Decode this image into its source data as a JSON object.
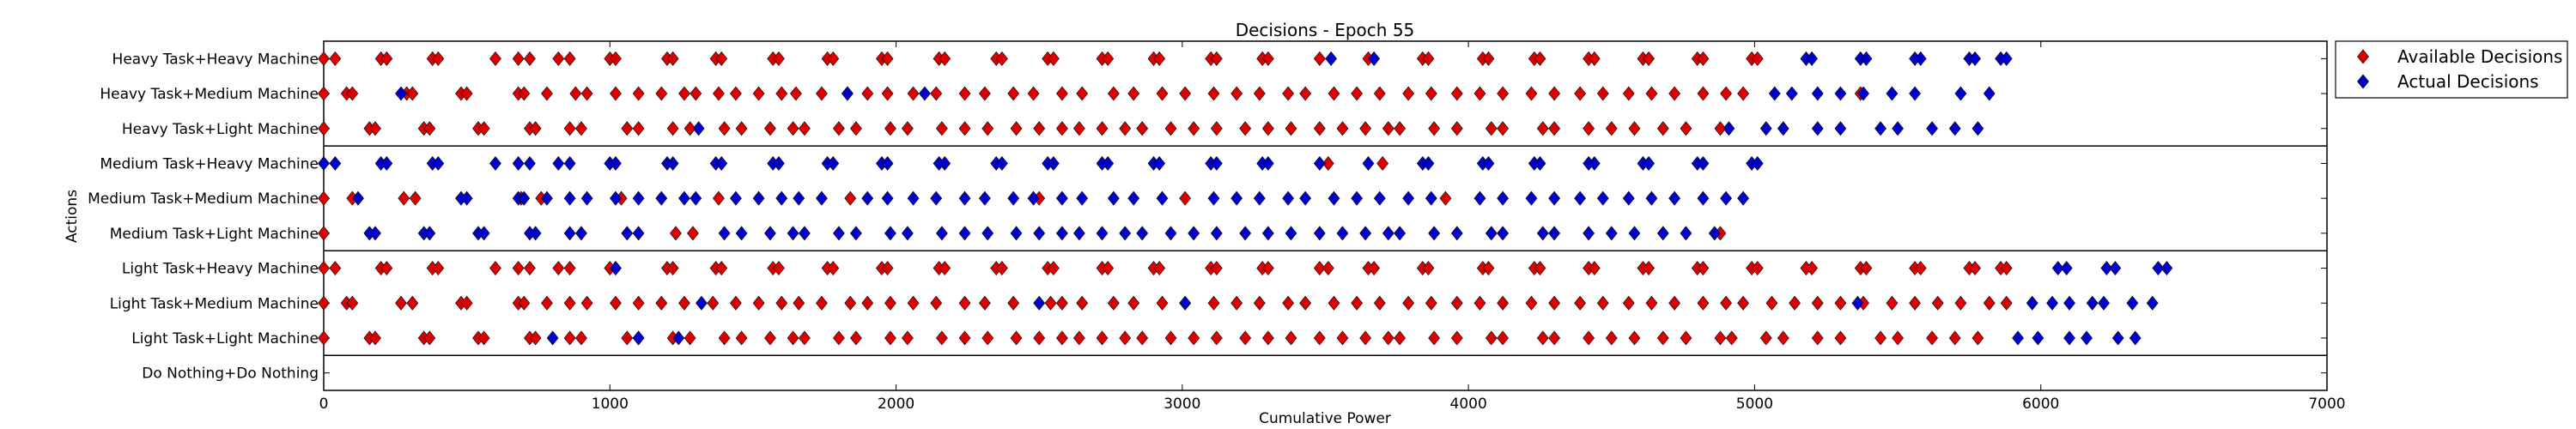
{
  "chart_data": {
    "type": "scatter",
    "title": "Decisions - Epoch 55",
    "xlabel": "Cumulative Power",
    "ylabel": "Actions",
    "xlim": [
      0,
      7000
    ],
    "x_ticks": [
      "0",
      "1000",
      "2000",
      "3000",
      "4000",
      "5000",
      "6000",
      "7000"
    ],
    "categories": [
      "Heavy Task+Heavy Machine",
      "Heavy Task+Medium Machine",
      "Heavy Task+Light Machine",
      "Medium Task+Heavy Machine",
      "Medium Task+Medium Machine",
      "Medium Task+Light Machine",
      "Light Task+Heavy Machine",
      "Light Task+Medium Machine",
      "Light Task+Light Machine",
      "Do Nothing+Do Nothing"
    ],
    "group_separators_after": [
      2,
      5,
      8
    ],
    "grid": false,
    "legend_position": "outside-top-right",
    "series": [
      {
        "name": "Available Decisions",
        "color": "#dd0000",
        "marker": "diamond",
        "x_by_category": [
          [
            0,
            40,
            200,
            220,
            380,
            400,
            600,
            680,
            720,
            820,
            860,
            1000,
            1020,
            1200,
            1220,
            1370,
            1390,
            1570,
            1590,
            1760,
            1780,
            1950,
            1970,
            2150,
            2170,
            2350,
            2370,
            2530,
            2550,
            2720,
            2740,
            2900,
            2920,
            3100,
            3120,
            3280,
            3300,
            3480,
            3650,
            3840,
            3860,
            4050,
            4070,
            4230,
            4250,
            4420,
            4440,
            4610,
            4630,
            4800,
            4820,
            4990,
            5010
          ],
          [
            0,
            80,
            100,
            290,
            310,
            480,
            500,
            680,
            700,
            780,
            880,
            920,
            1020,
            1100,
            1180,
            1260,
            1300,
            1380,
            1440,
            1520,
            1600,
            1650,
            1740,
            1830,
            1900,
            1970,
            2060,
            2140,
            2240,
            2310,
            2410,
            2480,
            2580,
            2650,
            2760,
            2830,
            2930,
            3010,
            3110,
            3190,
            3270,
            3370,
            3430,
            3530,
            3610,
            3690,
            3790,
            3870,
            3960,
            4040,
            4120,
            4220,
            4300,
            4390,
            4470,
            4560,
            4640,
            4720,
            4820,
            4900,
            4960,
            5370
          ],
          [
            0,
            160,
            180,
            350,
            370,
            540,
            560,
            720,
            740,
            860,
            900,
            1060,
            1100,
            1220,
            1280,
            1400,
            1460,
            1560,
            1640,
            1680,
            1800,
            1860,
            1980,
            2040,
            2160,
            2240,
            2320,
            2420,
            2500,
            2580,
            2640,
            2720,
            2800,
            2860,
            2960,
            3040,
            3120,
            3220,
            3300,
            3380,
            3480,
            3560,
            3640,
            3720,
            3760,
            3880,
            3960,
            4080,
            4120,
            4260,
            4300,
            4420,
            4500,
            4580,
            4680,
            4760,
            4880
          ],
          [
            3510,
            3700
          ],
          [
            0,
            100,
            280,
            320,
            690,
            760,
            1040,
            1380,
            1840,
            2500,
            3010,
            3920
          ],
          [
            0,
            1230,
            1290,
            4880
          ],
          [
            0,
            40,
            200,
            220,
            380,
            400,
            600,
            680,
            720,
            820,
            860,
            1000,
            1020,
            1200,
            1220,
            1370,
            1390,
            1570,
            1590,
            1760,
            1780,
            1950,
            1970,
            2150,
            2170,
            2350,
            2370,
            2530,
            2550,
            2720,
            2740,
            2900,
            2920,
            3100,
            3120,
            3280,
            3300,
            3480,
            3510,
            3650,
            3670,
            3840,
            3860,
            4050,
            4070,
            4230,
            4250,
            4420,
            4440,
            4610,
            4630,
            4800,
            4820,
            4990,
            5010,
            5180,
            5200,
            5370,
            5390,
            5560,
            5580,
            5750,
            5770,
            5860,
            5880
          ],
          [
            0,
            80,
            100,
            270,
            310,
            480,
            500,
            680,
            700,
            780,
            860,
            920,
            1020,
            1100,
            1180,
            1260,
            1360,
            1440,
            1520,
            1600,
            1660,
            1740,
            1840,
            1900,
            1980,
            2060,
            2140,
            2240,
            2310,
            2410,
            2540,
            2580,
            2650,
            2760,
            2830,
            2930,
            3010,
            3110,
            3190,
            3270,
            3370,
            3430,
            3530,
            3610,
            3690,
            3790,
            3870,
            3960,
            4040,
            4120,
            4220,
            4300,
            4390,
            4470,
            4560,
            4640,
            4720,
            4820,
            4900,
            4960,
            5060,
            5140,
            5220,
            5300,
            5380,
            5480,
            5560,
            5640,
            5720,
            5820,
            5880
          ],
          [
            0,
            160,
            180,
            350,
            370,
            540,
            560,
            720,
            740,
            860,
            900,
            1060,
            1100,
            1220,
            1280,
            1400,
            1460,
            1560,
            1640,
            1680,
            1800,
            1860,
            1980,
            2040,
            2160,
            2240,
            2320,
            2420,
            2500,
            2580,
            2640,
            2720,
            2800,
            2860,
            2960,
            3040,
            3120,
            3220,
            3300,
            3380,
            3480,
            3560,
            3640,
            3720,
            3760,
            3880,
            3960,
            4080,
            4120,
            4260,
            4300,
            4420,
            4500,
            4580,
            4680,
            4760,
            4880,
            4920,
            5040,
            5100,
            5220,
            5300,
            5440,
            5500,
            5620,
            5700,
            5780
          ],
          []
        ]
      },
      {
        "name": "Actual Decisions",
        "color": "#0000cc",
        "marker": "diamond",
        "x_by_category": [
          [
            3520,
            3670,
            5180,
            5200,
            5370,
            5390,
            5560,
            5580,
            5750,
            5770,
            5860,
            5880
          ],
          [
            270,
            1830,
            2100,
            5070,
            5130,
            5220,
            5300,
            5380,
            5480,
            5560,
            5720,
            5820
          ],
          [
            1310,
            4910,
            5040,
            5100,
            5220,
            5300,
            5440,
            5500,
            5620,
            5700,
            5780
          ],
          [
            0,
            40,
            200,
            220,
            380,
            400,
            600,
            680,
            720,
            820,
            860,
            1000,
            1020,
            1200,
            1220,
            1370,
            1390,
            1570,
            1590,
            1760,
            1780,
            1950,
            1970,
            2150,
            2170,
            2350,
            2370,
            2530,
            2550,
            2720,
            2740,
            2900,
            2920,
            3100,
            3120,
            3280,
            3300,
            3480,
            3650,
            3840,
            3860,
            4050,
            4070,
            4230,
            4250,
            4420,
            4440,
            4610,
            4630,
            4800,
            4820,
            4990,
            5010
          ],
          [
            120,
            480,
            500,
            680,
            700,
            780,
            860,
            920,
            1020,
            1100,
            1180,
            1260,
            1300,
            1440,
            1520,
            1600,
            1660,
            1740,
            1900,
            1970,
            2060,
            2140,
            2240,
            2310,
            2410,
            2480,
            2580,
            2650,
            2760,
            2830,
            2930,
            3110,
            3190,
            3270,
            3370,
            3430,
            3530,
            3610,
            3690,
            3790,
            3870,
            4040,
            4120,
            4220,
            4300,
            4390,
            4470,
            4560,
            4640,
            4720,
            4820,
            4900,
            4960
          ],
          [
            160,
            180,
            350,
            370,
            540,
            560,
            720,
            740,
            860,
            900,
            1060,
            1100,
            1400,
            1460,
            1560,
            1640,
            1680,
            1800,
            1860,
            1980,
            2040,
            2160,
            2240,
            2320,
            2420,
            2500,
            2580,
            2640,
            2720,
            2800,
            2860,
            2960,
            3040,
            3120,
            3220,
            3300,
            3380,
            3480,
            3560,
            3640,
            3720,
            3760,
            3880,
            3960,
            4080,
            4120,
            4260,
            4300,
            4420,
            4500,
            4580,
            4680,
            4760,
            4860
          ],
          [
            1020,
            6060,
            6090,
            6230,
            6260,
            6410,
            6440
          ],
          [
            1320,
            2500,
            3010,
            5360,
            5970,
            6040,
            6100,
            6180,
            6220,
            6320,
            6390
          ],
          [
            800,
            1100,
            1240,
            5920,
            5990,
            6100,
            6160,
            6270,
            6330
          ],
          []
        ]
      }
    ]
  }
}
